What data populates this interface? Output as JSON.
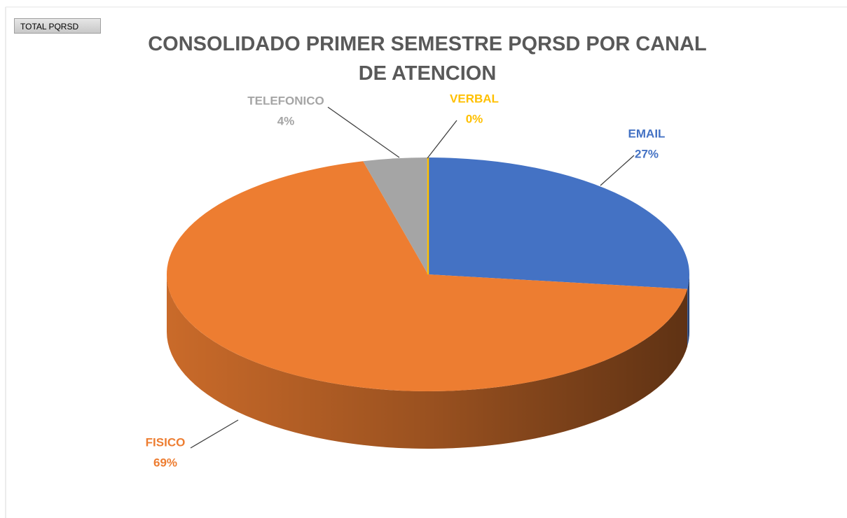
{
  "button": "TOTAL PQRSD",
  "chart_data": {
    "type": "pie3d",
    "title": "CONSOLIDADO PRIMER SEMESTRE PQRSD POR CANAL DE ATENCION",
    "categories": [
      "EMAIL",
      "FISICO",
      "TELEFONICO",
      "VERBAL"
    ],
    "values": [
      27,
      69,
      4,
      0
    ],
    "value_labels": [
      "27%",
      "69%",
      "4%",
      "0%"
    ],
    "colors": [
      "#4472c4",
      "#ed7d31",
      "#a5a5a5",
      "#ffc000"
    ]
  }
}
